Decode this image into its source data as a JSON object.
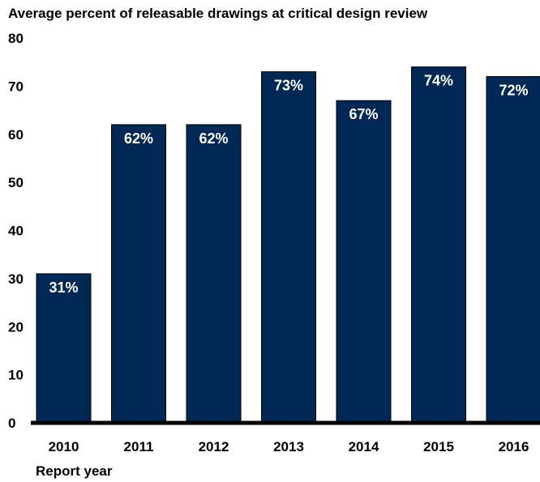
{
  "chart_data": {
    "type": "bar",
    "title": "Average percent of releasable drawings at critical design review",
    "xlabel": "Report year",
    "ylabel": "",
    "categories": [
      "2010",
      "2011",
      "2012",
      "2013",
      "2014",
      "2015",
      "2016"
    ],
    "values": [
      31,
      62,
      62,
      73,
      67,
      74,
      72
    ],
    "data_labels": [
      "31%",
      "62%",
      "62%",
      "73%",
      "67%",
      "74%",
      "72%"
    ],
    "y_ticks": [
      "0",
      "10",
      "20",
      "30",
      "40",
      "50",
      "60",
      "70",
      "80"
    ],
    "ylim": [
      0,
      80
    ],
    "grid": false,
    "legend": "none",
    "bar_color": "#002855",
    "label_color": "#ffffff"
  }
}
